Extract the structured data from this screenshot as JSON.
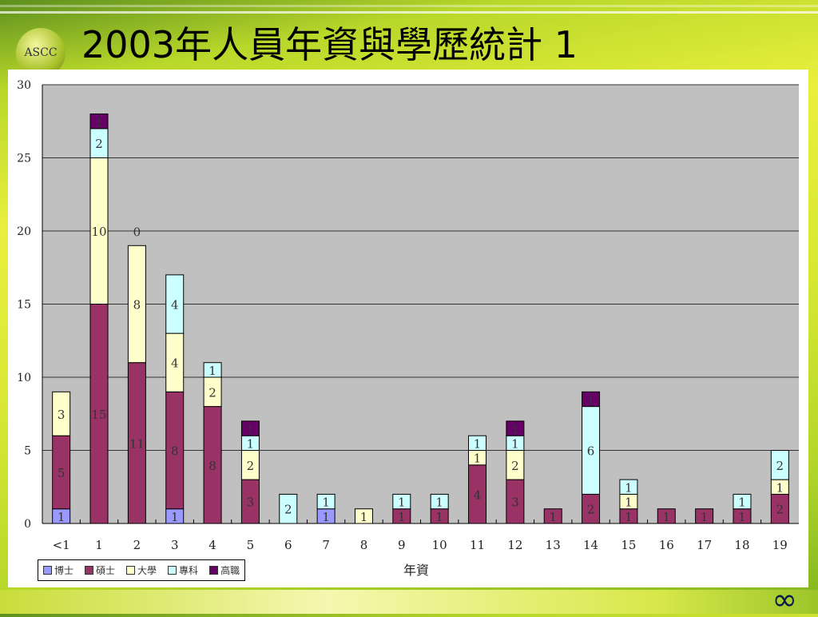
{
  "header": {
    "logo_text": "ASCC",
    "title": "2003年人員年資與學歷統計 1"
  },
  "footer": {
    "icon": "infinity-icon",
    "symbol": "∞"
  },
  "chart_data": {
    "type": "bar",
    "stacked": true,
    "title": "2003年人員年資與學歷統計 1",
    "xlabel": "年資",
    "ylabel": "",
    "ylim": [
      0,
      30
    ],
    "yticks": [
      0,
      5,
      10,
      15,
      20,
      25,
      30
    ],
    "grid": true,
    "legend_position": "bottom-left",
    "categories": [
      "<1",
      "1",
      "2",
      "3",
      "4",
      "5",
      "6",
      "7",
      "8",
      "9",
      "10",
      "11",
      "12",
      "13",
      "14",
      "15",
      "16",
      "17",
      "18",
      "19"
    ],
    "series": [
      {
        "name": "博士",
        "color": "#9999ff",
        "values": [
          1,
          null,
          null,
          1,
          null,
          null,
          null,
          1,
          null,
          null,
          null,
          null,
          null,
          null,
          null,
          null,
          null,
          null,
          null,
          null
        ]
      },
      {
        "name": "碩士",
        "color": "#993366",
        "values": [
          5,
          15,
          11,
          8,
          8,
          3,
          null,
          null,
          null,
          1,
          1,
          4,
          3,
          1,
          2,
          1,
          1,
          1,
          1,
          2
        ]
      },
      {
        "name": "大學",
        "color": "#ffffcc",
        "values": [
          3,
          10,
          8,
          4,
          2,
          2,
          null,
          null,
          1,
          null,
          null,
          1,
          2,
          null,
          null,
          1,
          null,
          null,
          null,
          1
        ]
      },
      {
        "name": "專科",
        "color": "#ccffff",
        "values": [
          null,
          2,
          0,
          4,
          1,
          1,
          2,
          1,
          null,
          1,
          1,
          1,
          1,
          null,
          6,
          1,
          null,
          null,
          1,
          2
        ]
      },
      {
        "name": "高職",
        "color": "#660066",
        "values": [
          null,
          1,
          null,
          null,
          null,
          1,
          null,
          null,
          null,
          null,
          null,
          null,
          1,
          null,
          1,
          null,
          null,
          null,
          null,
          null
        ]
      }
    ]
  }
}
